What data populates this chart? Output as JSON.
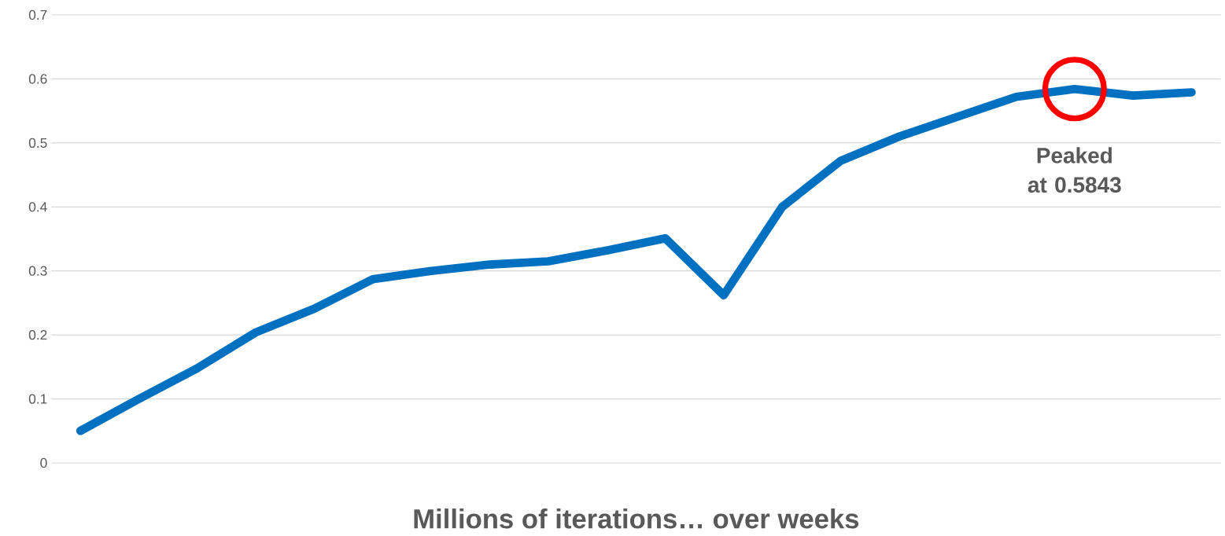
{
  "chart_data": {
    "type": "line",
    "xlabel": "Millions of iterations… over weeks",
    "categories": [
      null,
      null,
      null,
      null,
      null,
      null,
      null,
      null,
      null,
      null,
      null,
      null,
      null,
      null,
      null,
      null,
      null,
      null,
      null,
      null
    ],
    "series": [
      {
        "color": "#0070c0",
        "values": [
          0.05,
          0.1,
          0.148,
          0.204,
          0.241,
          0.287,
          0.3,
          0.31,
          0.315,
          0.332,
          0.351,
          0.262,
          0.4,
          0.472,
          0.51,
          0.541,
          0.572,
          0.5843,
          0.574,
          0.579
        ]
      }
    ],
    "ylim": [
      0,
      0.7
    ],
    "yticks": [
      0,
      0.1,
      0.2,
      0.3,
      0.4,
      0.5,
      0.6,
      0.7
    ],
    "grid": "y",
    "marker": "none",
    "line_style": "solid",
    "annotations": [
      {
        "text": "Peaked at 0.5843",
        "y": 0.5843
      }
    ]
  }
}
